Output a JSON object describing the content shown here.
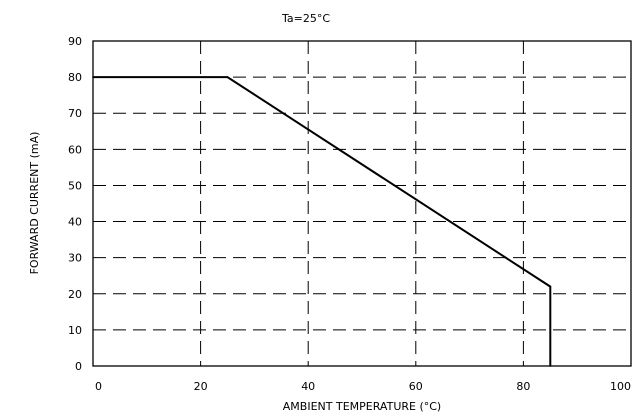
{
  "chart_data": {
    "type": "line",
    "title": "Ta=25°C",
    "xlabel": "AMBIENT TEMPERATURE (°C)",
    "ylabel": "FORWARD CURRENT (mA)",
    "xlim": [
      0,
      100
    ],
    "ylim": [
      0,
      90
    ],
    "x_ticks": [
      0,
      20,
      40,
      60,
      80,
      100
    ],
    "y_ticks": [
      0,
      10,
      20,
      30,
      40,
      50,
      60,
      70,
      80,
      90
    ],
    "grid": true,
    "series": [
      {
        "x": [
          0,
          25,
          85,
          85
        ],
        "y": [
          80,
          80,
          22,
          0
        ]
      }
    ]
  }
}
